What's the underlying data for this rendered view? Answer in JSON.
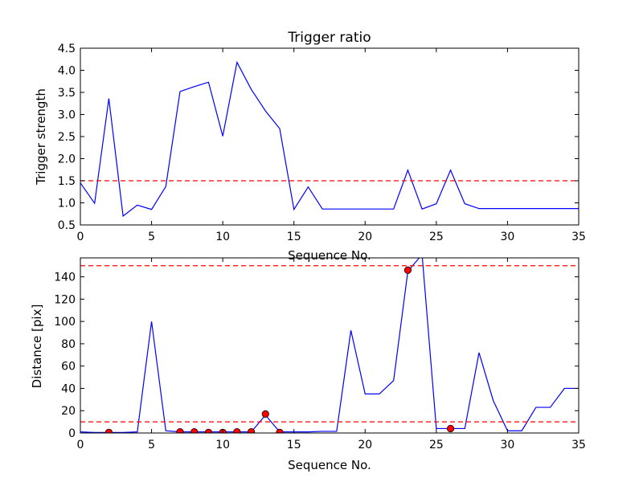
{
  "chart_data": [
    {
      "type": "line",
      "title": "Trigger ratio",
      "xlabel": "Sequence No.",
      "ylabel": "Trigger strength",
      "xlim": [
        0,
        35
      ],
      "ylim": [
        0.5,
        4.5
      ],
      "xticks": [
        0,
        5,
        10,
        15,
        20,
        25,
        30,
        35
      ],
      "xtick_labels": [
        "0",
        "5",
        "10",
        "15",
        "20",
        "25",
        "30",
        "35"
      ],
      "yticks": [
        0.5,
        1.0,
        1.5,
        2.0,
        2.5,
        3.0,
        3.5,
        4.0,
        4.5
      ],
      "ytick_labels": [
        "0.5",
        "1.0",
        "1.5",
        "2.0",
        "2.5",
        "3.0",
        "3.5",
        "4.0",
        "4.5"
      ],
      "grid": false,
      "series": [
        {
          "color": "#0000ff",
          "x": [
            0,
            1,
            2,
            3,
            4,
            5,
            6,
            7,
            8,
            9,
            10,
            11,
            12,
            13,
            14,
            15,
            16,
            17,
            18,
            19,
            20,
            21,
            22,
            23,
            24,
            25,
            26,
            27,
            28,
            29,
            30,
            31,
            32,
            33,
            34,
            35
          ],
          "y": [
            1.45,
            0.99,
            3.36,
            0.7,
            0.95,
            0.85,
            1.37,
            3.52,
            3.63,
            3.73,
            2.51,
            4.18,
            3.57,
            3.08,
            2.68,
            0.85,
            1.36,
            0.86,
            0.86,
            0.86,
            0.86,
            0.86,
            0.86,
            1.74,
            0.86,
            0.98,
            1.74,
            0.98,
            0.87,
            0.87,
            0.87,
            0.87,
            0.87,
            0.87,
            0.87,
            0.87
          ]
        }
      ],
      "hlines": [
        {
          "y": 1.5,
          "color": "#ff0000",
          "style": "dashed"
        }
      ]
    },
    {
      "type": "line",
      "title": "",
      "xlabel": "Sequence No.",
      "ylabel": "Distance [pix]",
      "xlim": [
        0,
        35
      ],
      "ylim": [
        0,
        157
      ],
      "xticks": [
        0,
        5,
        10,
        15,
        20,
        25,
        30,
        35
      ],
      "xtick_labels": [
        "0",
        "5",
        "10",
        "15",
        "20",
        "25",
        "30",
        "35"
      ],
      "yticks": [
        0,
        20,
        40,
        60,
        80,
        100,
        120,
        140
      ],
      "ytick_labels": [
        "0",
        "20",
        "40",
        "60",
        "80",
        "100",
        "120",
        "140"
      ],
      "grid": false,
      "series": [
        {
          "color": "#0000ff",
          "x": [
            0,
            1,
            2,
            3,
            4,
            5,
            6,
            7,
            8,
            9,
            10,
            11,
            12,
            13,
            14,
            15,
            16,
            17,
            18,
            19,
            20,
            21,
            22,
            23,
            24,
            25,
            26,
            27,
            28,
            29,
            30,
            31,
            32,
            33,
            34,
            35
          ],
          "y": [
            1,
            0.5,
            0.5,
            0.5,
            1,
            100,
            2,
            1,
            1,
            1,
            1,
            1,
            1,
            16,
            1,
            1,
            1,
            1.5,
            1.5,
            92,
            35,
            35,
            47,
            145,
            160,
            4,
            4,
            4,
            72,
            29,
            2,
            2,
            23,
            23,
            40,
            40
          ]
        }
      ],
      "markers": {
        "color": "#ff0000",
        "points": [
          [
            2,
            0.5
          ],
          [
            7,
            1
          ],
          [
            8,
            1
          ],
          [
            9,
            0.5
          ],
          [
            10,
            0.5
          ],
          [
            11,
            1
          ],
          [
            12,
            1
          ],
          [
            13,
            17
          ],
          [
            14,
            0.5
          ],
          [
            23,
            146
          ],
          [
            26,
            4
          ]
        ]
      },
      "hlines": [
        {
          "y": 150,
          "color": "#ff0000",
          "style": "dashed"
        },
        {
          "y": 10,
          "color": "#ff0000",
          "style": "dashed"
        }
      ]
    }
  ]
}
